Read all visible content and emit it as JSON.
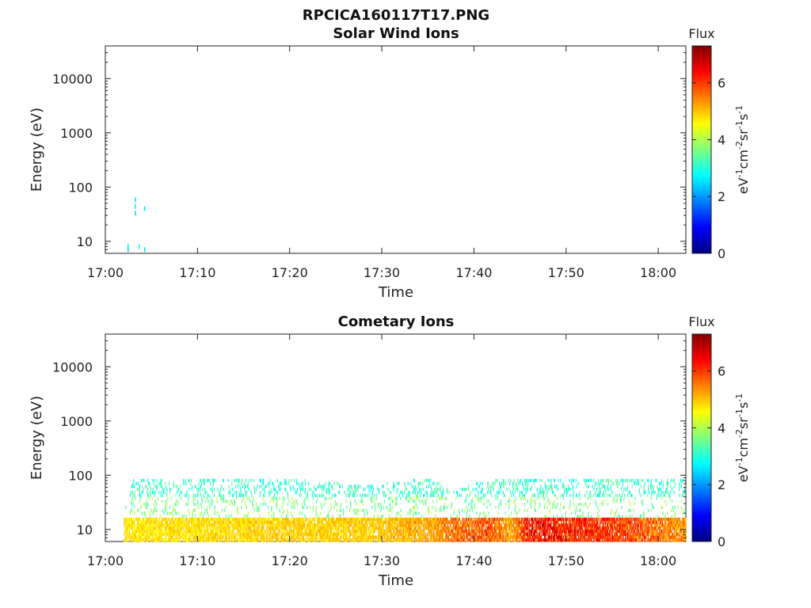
{
  "figure_title": "RPCICA160117T17.PNG",
  "colors": {
    "cmap": [
      "#00007f",
      "#0000ff",
      "#007fff",
      "#00ffff",
      "#7fff7f",
      "#ffff00",
      "#ff7f00",
      "#ff0000",
      "#7f0000"
    ],
    "axis": "#222222"
  },
  "chart_data": [
    {
      "type": "heatmap",
      "title": "Solar Wind Ions",
      "xlabel": "Time",
      "ylabel": "Energy (eV)",
      "xlim": [
        "17:00",
        "18:03"
      ],
      "x_ticks": [
        "17:00",
        "17:10",
        "17:20",
        "17:30",
        "17:40",
        "17:50",
        "18:00"
      ],
      "ylim": [
        6,
        40000
      ],
      "yscale": "log",
      "y_ticks": [
        10,
        100,
        1000,
        10000
      ],
      "y_tick_labels": [
        "10",
        "100",
        "1000",
        "10000"
      ],
      "colorbar": {
        "label": "Flux",
        "unit": "eV-1cm-2sr-1s-1",
        "ticks": [
          "0",
          "2",
          "4",
          "6"
        ],
        "range": [
          0,
          7.3
        ]
      },
      "points": [
        {
          "t": "17:02:24",
          "e": 8,
          "v": 2.6
        },
        {
          "t": "17:02:24",
          "e": 7,
          "v": 2.5
        },
        {
          "t": "17:03:12",
          "e": 58,
          "v": 2.6
        },
        {
          "t": "17:03:12",
          "e": 44,
          "v": 2.7
        },
        {
          "t": "17:03:12",
          "e": 33,
          "v": 2.5
        },
        {
          "t": "17:03:36",
          "e": 8,
          "v": 2.8
        },
        {
          "t": "17:04:12",
          "e": 40,
          "v": 2.6
        },
        {
          "t": "17:04:12",
          "e": 7,
          "v": 2.5
        }
      ]
    },
    {
      "type": "heatmap",
      "title": "Cometary Ions",
      "xlabel": "Time",
      "ylabel": "Energy (eV)",
      "xlim": [
        "17:00",
        "18:03"
      ],
      "x_ticks": [
        "17:00",
        "17:10",
        "17:20",
        "17:30",
        "17:40",
        "17:50",
        "18:00"
      ],
      "ylim": [
        6,
        40000
      ],
      "yscale": "log",
      "y_ticks": [
        10,
        100,
        1000,
        10000
      ],
      "y_tick_labels": [
        "10",
        "100",
        "1000",
        "10000"
      ],
      "colorbar": {
        "label": "Flux",
        "unit": "eV-1cm-2sr-1s-1",
        "ticks": [
          "0",
          "2",
          "4",
          "6"
        ],
        "range": [
          0,
          7.3
        ]
      },
      "time_profile": [
        {
          "t": "17:02",
          "max_e": 15,
          "lo": 4.6,
          "hi": 4.9
        },
        {
          "t": "17:03",
          "max_e": 80,
          "lo": 4.5,
          "hi": 5.0
        },
        {
          "t": "17:10",
          "max_e": 80,
          "lo": 4.5,
          "hi": 5.1
        },
        {
          "t": "17:20",
          "max_e": 80,
          "lo": 4.6,
          "hi": 5.2
        },
        {
          "t": "17:28",
          "max_e": 60,
          "lo": 4.6,
          "hi": 5.2
        },
        {
          "t": "17:35",
          "max_e": 80,
          "lo": 4.8,
          "hi": 5.6
        },
        {
          "t": "17:38",
          "max_e": 50,
          "lo": 5.2,
          "hi": 6.0
        },
        {
          "t": "17:42",
          "max_e": 80,
          "lo": 5.2,
          "hi": 6.3
        },
        {
          "t": "17:44",
          "max_e": 80,
          "lo": 4.8,
          "hi": 5.6
        },
        {
          "t": "17:46",
          "max_e": 80,
          "lo": 5.6,
          "hi": 7.0
        },
        {
          "t": "17:50",
          "max_e": 80,
          "lo": 5.5,
          "hi": 6.8
        },
        {
          "t": "17:55",
          "max_e": 80,
          "lo": 5.4,
          "hi": 6.6
        },
        {
          "t": "18:00",
          "max_e": 80,
          "lo": 5.0,
          "hi": 6.2
        },
        {
          "t": "18:03",
          "max_e": 80,
          "lo": 4.8,
          "hi": 5.8
        }
      ]
    }
  ]
}
